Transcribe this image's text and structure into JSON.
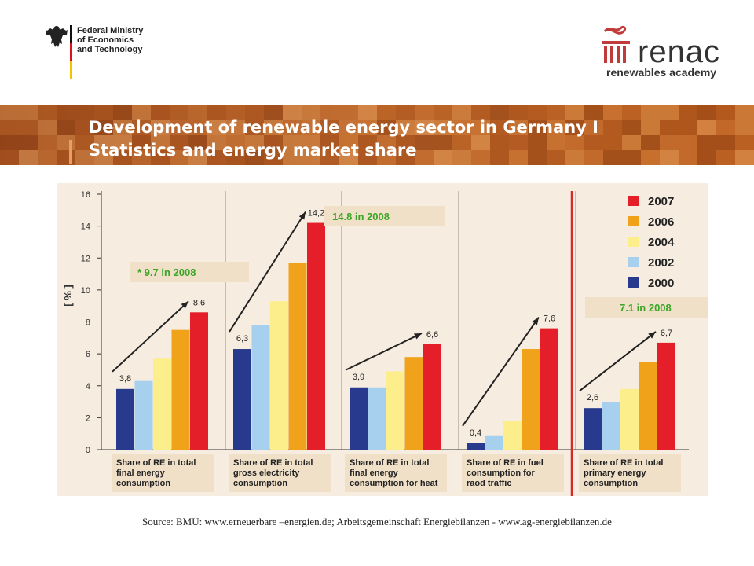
{
  "header": {
    "ministry_lines": [
      "Federal Ministry",
      "of Economics",
      "and Technology"
    ],
    "renac_name": "renac",
    "renac_tagline": "renewables academy"
  },
  "slide": {
    "title_line1": "Development of renewable energy sector in Germany I",
    "title_line2": "Statistics and energy market share"
  },
  "chart_data": {
    "type": "bar",
    "ylabel": "[ % ]",
    "ylim": [
      0,
      16
    ],
    "yticks": [
      "0",
      "2",
      "4",
      "6",
      "8",
      "10",
      "12",
      "14",
      "16"
    ],
    "grid": false,
    "legend_placement": "top-right",
    "categories": [
      "Share of RE in total final energy consumption",
      "Share of RE in total gross electricity consumption",
      "Share of RE in total final energy consumption for heat",
      "Share of RE in fuel consumption for raod traffic",
      "Share of RE in total primary energy consumption"
    ],
    "category_lines": [
      [
        "Share of RE in total",
        "final energy",
        "consumption"
      ],
      [
        "Share of RE in total",
        "gross electricity",
        "consumption"
      ],
      [
        "Share of RE in total",
        "final energy",
        "consumption for heat"
      ],
      [
        "Share of RE in fuel",
        "consumption for",
        "raod traffic"
      ],
      [
        "Share of RE in total",
        "primary energy",
        "consumption"
      ]
    ],
    "series": [
      {
        "name": "2000",
        "color": "#283a8e",
        "values": [
          3.8,
          6.3,
          3.9,
          0.4,
          2.6
        ]
      },
      {
        "name": "2002",
        "color": "#a6d0ee",
        "values": [
          4.3,
          7.8,
          3.9,
          0.9,
          3.0
        ]
      },
      {
        "name": "2004",
        "color": "#fdee8c",
        "values": [
          5.7,
          9.3,
          4.9,
          1.8,
          3.8
        ]
      },
      {
        "name": "2006",
        "color": "#f0a21b",
        "values": [
          7.5,
          11.7,
          5.8,
          6.3,
          5.5
        ]
      },
      {
        "name": "2007",
        "color": "#e41f2a",
        "values": [
          8.6,
          14.2,
          6.6,
          7.6,
          6.7
        ]
      }
    ],
    "legend_order": [
      "2007",
      "2006",
      "2004",
      "2002",
      "2000"
    ],
    "data_labels": [
      {
        "group": 0,
        "first": "3,8",
        "last": "8,6"
      },
      {
        "group": 1,
        "first": "6,3",
        "last": "14,2"
      },
      {
        "group": 2,
        "first": "3,9",
        "last": "6,6"
      },
      {
        "group": 3,
        "first": "0,4",
        "last": "7,6"
      },
      {
        "group": 4,
        "first": "2,6",
        "last": "6,7"
      }
    ],
    "annotations": [
      {
        "group": 0,
        "text": "* 9.7 in 2008"
      },
      {
        "group": 1,
        "text": "14.8 in 2008"
      },
      {
        "group": 4,
        "text": "7.1 in 2008"
      }
    ],
    "annotation_color": "#3aa526",
    "divider_color": "#d42a2a"
  },
  "footer": {
    "source": "Source: BMU: www.erneuerbare –energien.de; Arbeitsgemeinschaft Energiebilanzen - www.ag-energiebilanzen.de"
  }
}
